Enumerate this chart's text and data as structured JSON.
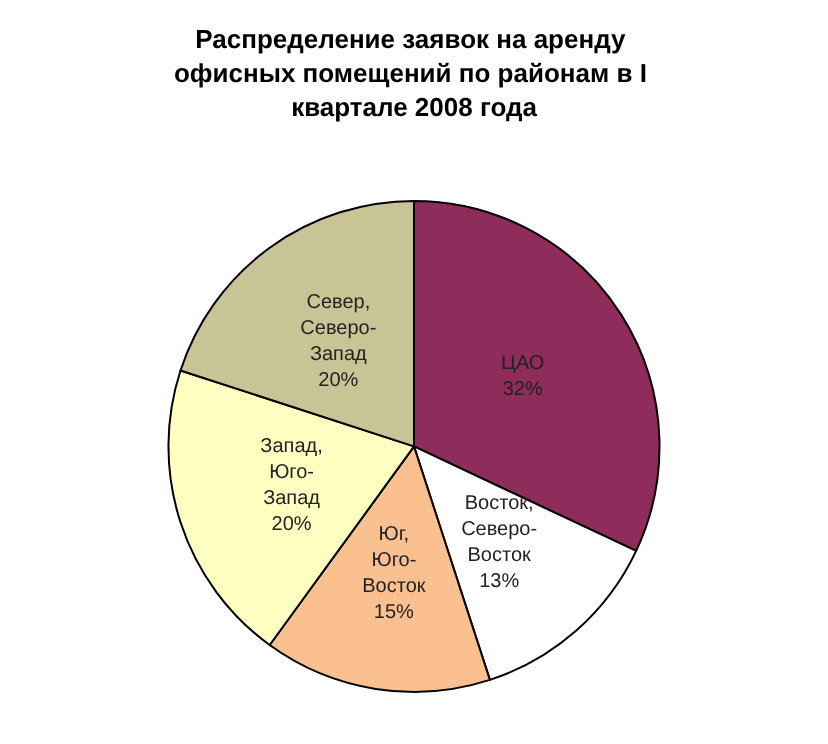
{
  "chart_data": {
    "type": "pie",
    "title": "Распределение заявок на аренду офисных помещений по районам в I квартале 2008 года",
    "categories": [
      "ЦАО",
      "Восток, Северо-Восток",
      "Юг, Юго-Восток",
      "Запад, Юго-Запад",
      "Север, Северо-Запад"
    ],
    "values": [
      32,
      13,
      15,
      20,
      20
    ],
    "colors": [
      "#8e2c5c",
      "#ffffff",
      "#fbc08f",
      "#ffffc2",
      "#c9c496"
    ],
    "value_labels": [
      "32%",
      "13%",
      "15%",
      "20%",
      "20%"
    ],
    "legend": false
  }
}
